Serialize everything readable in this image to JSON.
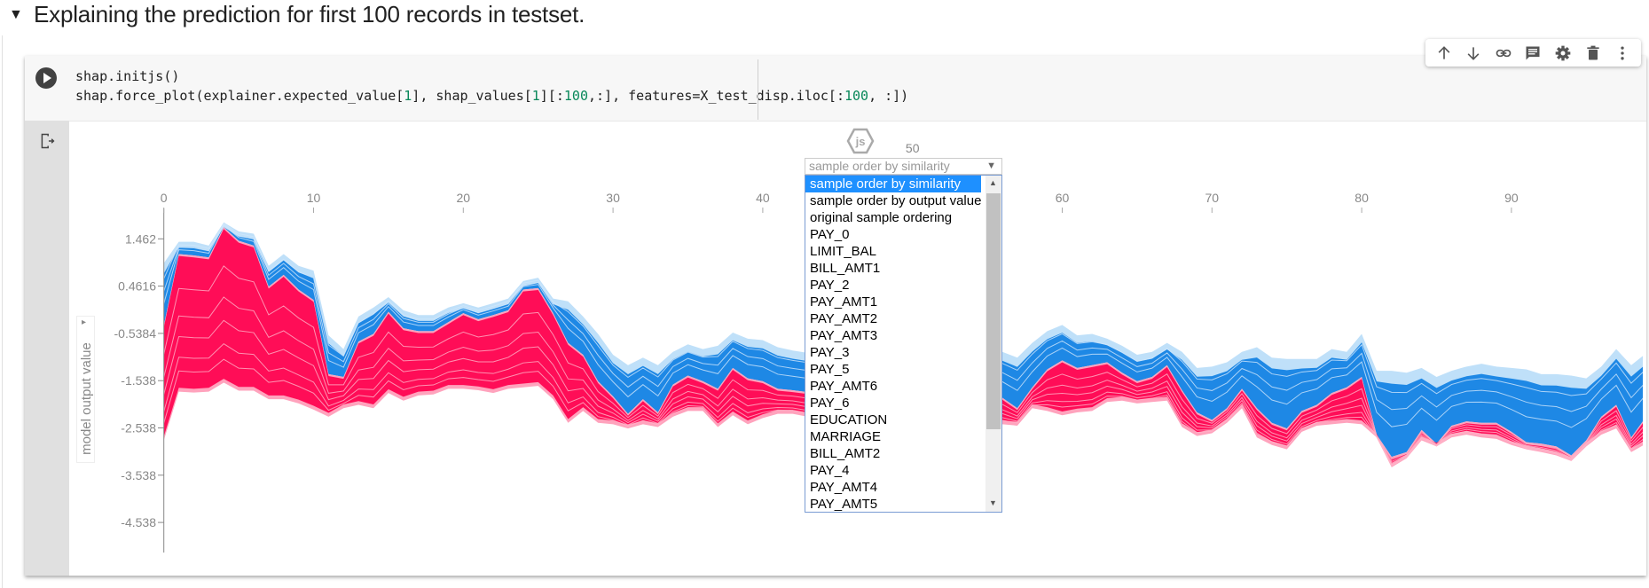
{
  "heading": {
    "toggle_icon": "triangle-down-icon",
    "text": "Explaining the prediction for first 100 records in testset."
  },
  "code": {
    "line1": "shap.initjs()",
    "line2_parts": [
      "shap.force_plot(explainer.expected_value[",
      "1",
      "], shap_values[",
      "1",
      "][:",
      "100",
      ",:], features=X_test_disp.iloc[:",
      "100",
      ", :])"
    ]
  },
  "toolbar": {
    "icons": [
      "arrow-up-icon",
      "arrow-down-icon",
      "link-icon",
      "comment-icon",
      "gear-icon",
      "trash-icon",
      "more-vert-icon"
    ]
  },
  "output": {
    "js_badge": "js",
    "select": {
      "value": "sample order by similarity"
    },
    "dropdown_options": [
      "sample order by similarity",
      "sample order by output value",
      "original sample ordering",
      "PAY_0",
      "LIMIT_BAL",
      "BILL_AMT1",
      "PAY_2",
      "PAY_AMT1",
      "PAY_AMT2",
      "PAY_AMT3",
      "PAY_3",
      "PAY_5",
      "PAY_AMT6",
      "PAY_6",
      "EDUCATION",
      "MARRIAGE",
      "BILL_AMT2",
      "PAY_4",
      "PAY_AMT4",
      "PAY_AMT5"
    ],
    "ylabel_select": "model output value"
  },
  "colors": {
    "positive": "#ff0d57",
    "positive_light": "#ffa3bd",
    "negative": "#1e88e5",
    "negative_light": "#bfe0f9"
  },
  "chart_data": {
    "type": "area",
    "subtype": "stacked force plot",
    "ylabel": "model output value",
    "x_ticks": [
      0,
      10,
      20,
      30,
      40,
      50,
      60,
      70,
      80,
      90
    ],
    "y_ticks": [
      "1.462",
      "0.4616",
      "-0.5384",
      "-1.538",
      "-2.538",
      "-3.538",
      "-4.538"
    ],
    "xlim": [
      0,
      99
    ],
    "ylim": [
      -5.17,
      2.11
    ],
    "upper_bound": [
      0.95,
      1.4,
      1.4,
      1.32,
      1.81,
      1.62,
      1.57,
      0.89,
      1.14,
      0.89,
      0.79,
      -0.58,
      -0.87,
      -0.18,
      0.01,
      0.23,
      -0.05,
      -0.15,
      -0.15,
      0.01,
      0.1,
      0.01,
      0.1,
      0.2,
      0.57,
      0.64,
      0.2,
      0.14,
      -0.18,
      -0.55,
      -0.99,
      -1.21,
      -1.05,
      -1.21,
      -0.93,
      -0.77,
      -0.87,
      -0.8,
      -0.52,
      -0.65,
      -0.68,
      -0.83,
      -0.9,
      -0.95,
      -1.0,
      -1.05,
      -1.0,
      -1.1,
      -1.0,
      -0.95,
      -1.0,
      -1.05,
      -0.95,
      -0.9,
      -0.95,
      -0.9,
      -0.93,
      -1.05,
      -0.74,
      -0.49,
      -0.36,
      -0.58,
      -0.55,
      -0.65,
      -0.8,
      -0.99,
      -0.93,
      -0.74,
      -0.93,
      -1.27,
      -1.24,
      -1.15,
      -0.93,
      -0.83,
      -1.05,
      -1.08,
      -1.08,
      -1.08,
      -0.87,
      -0.93,
      -0.55,
      -1.33,
      -1.33,
      -1.37,
      -1.27,
      -1.46,
      -1.33,
      -1.24,
      -1.18,
      -1.24,
      -1.27,
      -1.3,
      -1.4,
      -1.4,
      -1.43,
      -1.49,
      -1.24,
      -0.87,
      -1.21,
      -0.96
    ],
    "output_value": [
      -0.37,
      1.14,
      1.11,
      1.07,
      1.71,
      1.42,
      1.32,
      0.45,
      0.7,
      0.39,
      0.17,
      -1.4,
      -1.46,
      -0.71,
      -0.55,
      -0.08,
      -0.43,
      -0.49,
      -0.49,
      -0.3,
      -0.11,
      -0.24,
      -0.15,
      -0.05,
      0.39,
      0.42,
      -0.11,
      -0.74,
      -0.99,
      -1.55,
      -1.87,
      -2.24,
      -1.93,
      -2.21,
      -1.62,
      -1.43,
      -1.55,
      -1.71,
      -1.27,
      -1.49,
      -1.55,
      -1.71,
      -1.74,
      -1.78,
      -1.8,
      -1.85,
      -1.9,
      -1.95,
      -1.8,
      -1.75,
      -1.85,
      -1.9,
      -1.85,
      -1.8,
      -1.85,
      -1.85,
      -1.9,
      -2.12,
      -1.68,
      -1.3,
      -1.11,
      -1.27,
      -1.21,
      -1.15,
      -1.37,
      -1.55,
      -1.46,
      -1.21,
      -1.74,
      -2.21,
      -2.37,
      -2.12,
      -1.71,
      -2.12,
      -2.43,
      -2.55,
      -2.18,
      -2.05,
      -1.8,
      -1.68,
      -1.46,
      -2.68,
      -3.15,
      -3.05,
      -2.58,
      -2.87,
      -2.49,
      -2.4,
      -2.43,
      -2.43,
      -2.62,
      -2.84,
      -2.87,
      -2.93,
      -3.12,
      -2.8,
      -2.3,
      -2.05,
      -2.74,
      -2.3
    ],
    "lower_bound": [
      -2.8,
      -1.77,
      -1.79,
      -1.77,
      -1.58,
      -1.75,
      -1.75,
      -1.93,
      -1.93,
      -2.02,
      -2.15,
      -2.3,
      -2.12,
      -2.05,
      -2.12,
      -1.8,
      -1.96,
      -1.85,
      -1.83,
      -1.71,
      -1.71,
      -1.74,
      -1.8,
      -1.71,
      -1.68,
      -1.65,
      -1.93,
      -2.43,
      -2.18,
      -2.43,
      -2.46,
      -2.55,
      -2.46,
      -2.52,
      -2.3,
      -2.18,
      -2.18,
      -2.52,
      -2.27,
      -2.46,
      -2.33,
      -2.24,
      -2.24,
      -2.3,
      -2.35,
      -2.4,
      -2.45,
      -2.4,
      -2.35,
      -2.3,
      -2.4,
      -2.45,
      -2.4,
      -2.35,
      -2.4,
      -2.42,
      -2.46,
      -2.49,
      -2.12,
      -2.18,
      -2.27,
      -2.21,
      -2.18,
      -1.99,
      -1.96,
      -2.02,
      -1.99,
      -1.96,
      -2.52,
      -2.71,
      -2.65,
      -2.43,
      -2.12,
      -2.74,
      -2.9,
      -2.99,
      -2.62,
      -2.49,
      -2.46,
      -2.43,
      -2.46,
      -2.74,
      -3.37,
      -3.18,
      -2.8,
      -2.93,
      -2.74,
      -2.68,
      -2.74,
      -2.77,
      -2.9,
      -2.99,
      -3.05,
      -3.12,
      -3.24,
      -2.93,
      -2.68,
      -2.55,
      -3.05,
      -2.87
    ]
  }
}
